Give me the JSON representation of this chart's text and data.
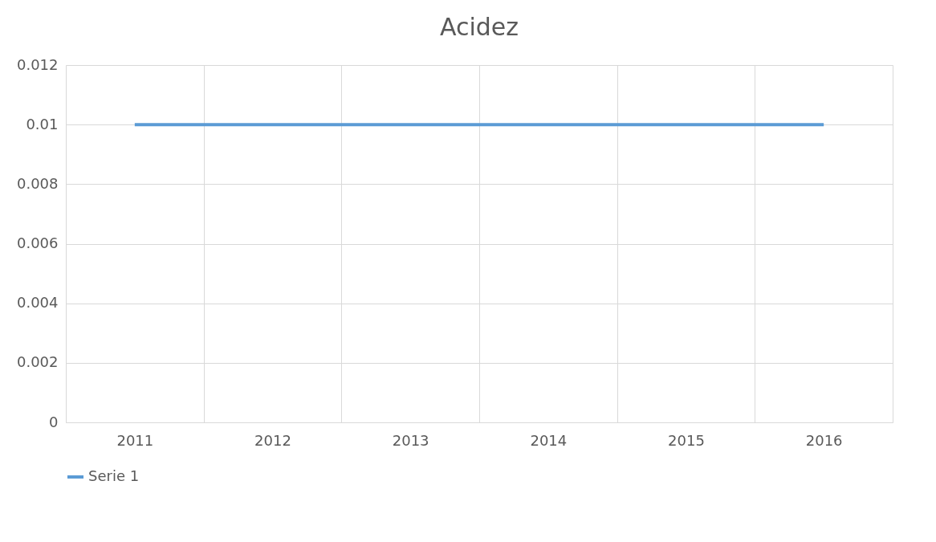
{
  "chart_data": {
    "type": "line",
    "title": "Acidez",
    "categories": [
      "2011",
      "2012",
      "2013",
      "2014",
      "2015",
      "2016"
    ],
    "series": [
      {
        "name": "Serie 1",
        "color": "#5b9bd5",
        "values": [
          0.01,
          0.01,
          0.01,
          0.01,
          0.01,
          0.01
        ]
      }
    ],
    "ylim": [
      0,
      0.012
    ],
    "yticks": [
      0,
      0.002,
      0.004,
      0.006,
      0.008,
      0.01,
      0.012
    ],
    "grid": true,
    "legend": "bottom",
    "marker": "none",
    "line_style": "solid"
  }
}
